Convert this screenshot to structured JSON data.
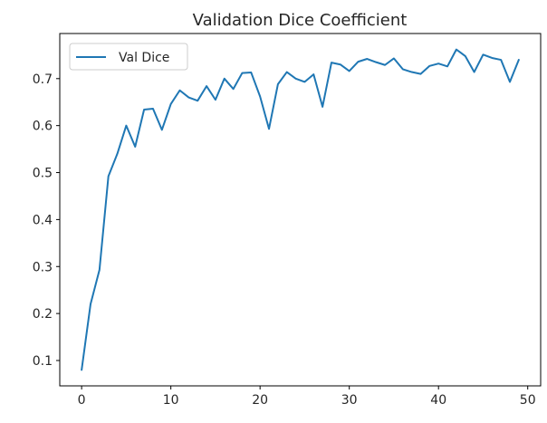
{
  "chart_data": {
    "type": "line",
    "title": "Validation Dice Coefficient",
    "xlabel": "",
    "ylabel": "",
    "xlim": [
      -2.45,
      51.45
    ],
    "ylim": [
      0.046,
      0.796
    ],
    "xticks": [
      0,
      10,
      20,
      30,
      40,
      50
    ],
    "yticks": [
      0.1,
      0.2,
      0.3,
      0.4,
      0.5,
      0.6,
      0.7
    ],
    "legend_position": "top-left",
    "grid": false,
    "series": [
      {
        "name": "Val Dice",
        "color": "#1f77b4",
        "x": [
          0,
          1,
          2,
          3,
          4,
          5,
          6,
          7,
          8,
          9,
          10,
          11,
          12,
          13,
          14,
          15,
          16,
          17,
          18,
          19,
          20,
          21,
          22,
          23,
          24,
          25,
          26,
          27,
          28,
          29,
          30,
          31,
          32,
          33,
          34,
          35,
          36,
          37,
          38,
          39,
          40,
          41,
          42,
          43,
          44,
          45,
          46,
          47,
          48,
          49
        ],
        "y": [
          0.08,
          0.22,
          0.293,
          0.492,
          0.54,
          0.6,
          0.555,
          0.634,
          0.636,
          0.591,
          0.646,
          0.675,
          0.66,
          0.653,
          0.684,
          0.655,
          0.7,
          0.678,
          0.712,
          0.713,
          0.662,
          0.593,
          0.688,
          0.714,
          0.7,
          0.693,
          0.709,
          0.64,
          0.734,
          0.73,
          0.716,
          0.736,
          0.742,
          0.735,
          0.729,
          0.743,
          0.72,
          0.714,
          0.71,
          0.727,
          0.732,
          0.726,
          0.762,
          0.748,
          0.714,
          0.751,
          0.744,
          0.74,
          0.693,
          0.74
        ]
      }
    ]
  }
}
